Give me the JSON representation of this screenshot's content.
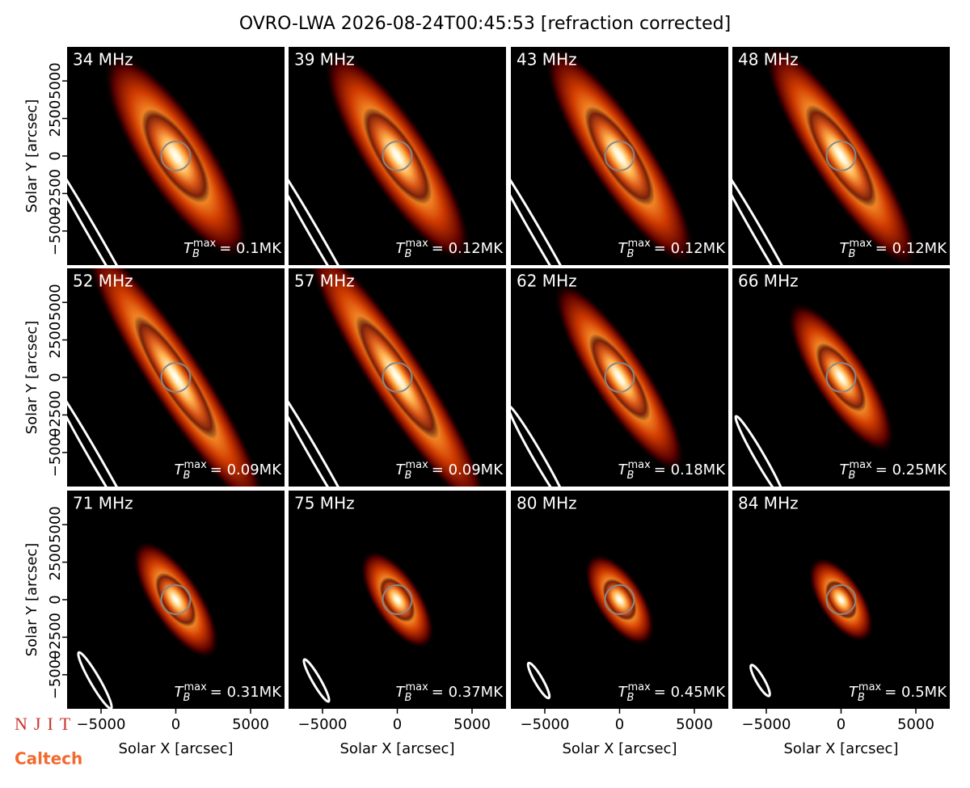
{
  "chart_data": {
    "type": "image-grid",
    "title": "OVRO-LWA 2026-08-24T00:45:53 [refraction corrected]",
    "xlabel": "Solar X [arcsec]",
    "ylabel": "Solar Y [arcsec]",
    "xlim": [
      -7270,
      7270
    ],
    "ylim": [
      -7270,
      7270
    ],
    "xticks": [
      {
        "value": -5000,
        "label": "−5000"
      },
      0,
      5000
    ],
    "yticks": [
      {
        "value": -5000,
        "label": "−5000"
      },
      {
        "value": -2500,
        "label": "−2500"
      },
      0,
      2500,
      5000
    ],
    "tb_symbol": "T",
    "tb_sub": "B",
    "tb_sup": "max",
    "panels": [
      {
        "title": "34 MHz",
        "annotation": "= 0.1MK"
      },
      {
        "title": "39 MHz",
        "annotation": "= 0.12MK"
      },
      {
        "title": "43 MHz",
        "annotation": "= 0.12MK"
      },
      {
        "title": "48 MHz",
        "annotation": "= 0.12MK"
      },
      {
        "title": "52 MHz",
        "annotation": "= 0.09MK"
      },
      {
        "title": "57 MHz",
        "annotation": "= 0.09MK"
      },
      {
        "title": "62 MHz",
        "annotation": "= 0.18MK"
      },
      {
        "title": "66 MHz",
        "annotation": "= 0.25MK"
      },
      {
        "title": "71 MHz",
        "annotation": "= 0.31MK"
      },
      {
        "title": "75 MHz",
        "annotation": "= 0.37MK"
      },
      {
        "title": "80 MHz",
        "annotation": "= 0.45MK"
      },
      {
        "title": "84 MHz",
        "annotation": "= 0.5MK"
      }
    ],
    "logos": {
      "njit": "NJIT",
      "caltech": "Caltech"
    }
  }
}
